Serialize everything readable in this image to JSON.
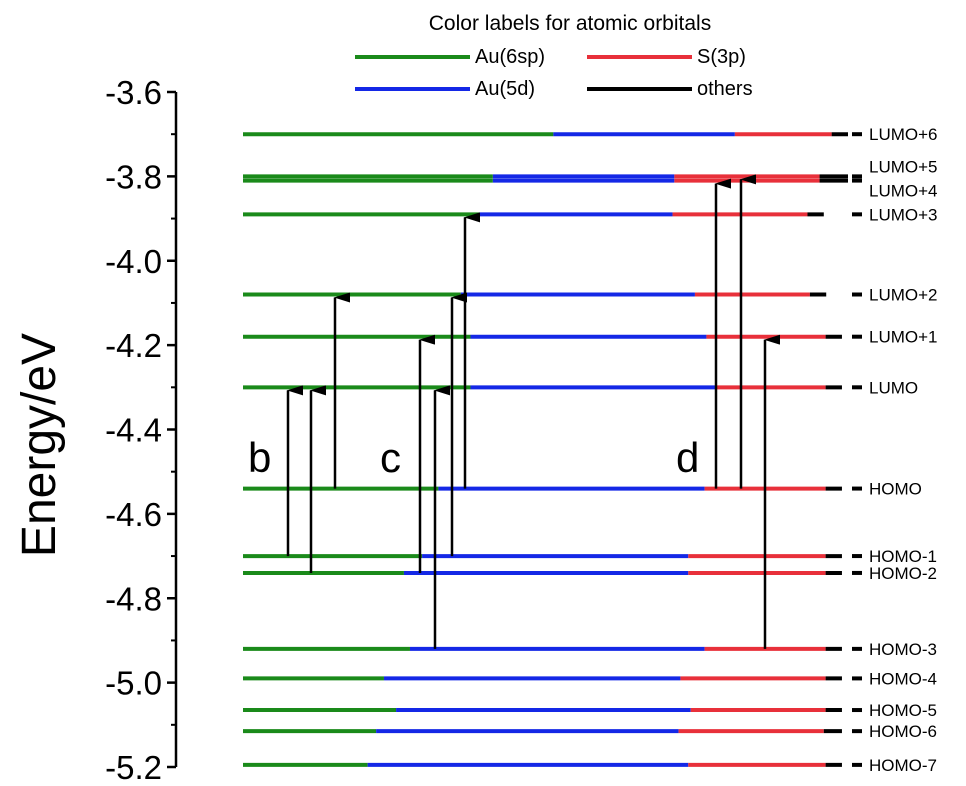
{
  "chart_data": {
    "type": "energy-level-diagram",
    "title": "",
    "xlabel": "",
    "ylabel": "Energy/eV",
    "ylim": [
      -5.2,
      -3.6
    ],
    "yticks": [
      {
        "value": -3.6,
        "label": "-3.6"
      },
      {
        "value": -3.8,
        "label": "-3.8"
      },
      {
        "value": -4.0,
        "label": "-4.0"
      },
      {
        "value": -4.2,
        "label": "-4.2"
      },
      {
        "value": -4.4,
        "label": "-4.4"
      },
      {
        "value": -4.6,
        "label": "-4.6"
      },
      {
        "value": -4.8,
        "label": "-4.8"
      },
      {
        "value": -5.0,
        "label": "-5.0"
      },
      {
        "value": -5.2,
        "label": "-5.2"
      }
    ],
    "legend": {
      "title": "Color labels for atomic orbitals",
      "placement": "top",
      "entries": [
        {
          "label": "Au(6sp)",
          "color": "#1a8a1a"
        },
        {
          "label": "S(3p)",
          "color": "#e8303a"
        },
        {
          "label": "Au(5d)",
          "color": "#1428e6"
        },
        {
          "label": "others",
          "color": "#000000"
        }
      ]
    },
    "colors": {
      "Au(6sp)": "#1a8a1a",
      "Au(5d)": "#1428e6",
      "S(3p)": "#e8303a",
      "others": "#000000"
    },
    "levels": [
      {
        "name": "LUMO+6",
        "energy": -3.7,
        "composition": {
          "Au(6sp)": 0.513,
          "Au(5d)": 0.3,
          "S(3p)": 0.16,
          "others": 0.027
        }
      },
      {
        "name": "LUMO+5",
        "energy": -3.8,
        "composition": {
          "Au(6sp)": 0.413,
          "Au(5d)": 0.3,
          "S(3p)": 0.24,
          "others": 0.047
        }
      },
      {
        "name": "LUMO+4",
        "energy": -3.81,
        "composition": {
          "Au(6sp)": 0.413,
          "Au(5d)": 0.3,
          "S(3p)": 0.24,
          "others": 0.047
        }
      },
      {
        "name": "LUMO+3",
        "energy": -3.89,
        "composition": {
          "Au(6sp)": 0.39,
          "Au(5d)": 0.32,
          "S(3p)": 0.223,
          "others": 0.027
        }
      },
      {
        "name": "LUMO+2",
        "energy": -4.08,
        "composition": {
          "Au(6sp)": 0.36,
          "Au(5d)": 0.387,
          "S(3p)": 0.19,
          "others": 0.027
        }
      },
      {
        "name": "LUMO+1",
        "energy": -4.18,
        "composition": {
          "Au(6sp)": 0.376,
          "Au(5d)": 0.39,
          "S(3p)": 0.197,
          "others": 0.027
        }
      },
      {
        "name": "LUMO",
        "energy": -4.3,
        "composition": {
          "Au(6sp)": 0.376,
          "Au(5d)": 0.407,
          "S(3p)": 0.18,
          "others": 0.027
        }
      },
      {
        "name": "HOMO",
        "energy": -4.54,
        "composition": {
          "Au(6sp)": 0.323,
          "Au(5d)": 0.44,
          "S(3p)": 0.2,
          "others": 0.027
        }
      },
      {
        "name": "HOMO-1",
        "energy": -4.7,
        "composition": {
          "Au(6sp)": 0.296,
          "Au(5d)": 0.44,
          "S(3p)": 0.227,
          "others": 0.027
        }
      },
      {
        "name": "HOMO-2",
        "energy": -4.74,
        "composition": {
          "Au(6sp)": 0.266,
          "Au(5d)": 0.47,
          "S(3p)": 0.227,
          "others": 0.027
        }
      },
      {
        "name": "HOMO-3",
        "energy": -4.92,
        "composition": {
          "Au(6sp)": 0.276,
          "Au(5d)": 0.487,
          "S(3p)": 0.2,
          "others": 0.027
        }
      },
      {
        "name": "HOMO-4",
        "energy": -4.99,
        "composition": {
          "Au(6sp)": 0.233,
          "Au(5d)": 0.49,
          "S(3p)": 0.24,
          "others": 0.027
        }
      },
      {
        "name": "HOMO-5",
        "energy": -5.065,
        "composition": {
          "Au(6sp)": 0.253,
          "Au(5d)": 0.487,
          "S(3p)": 0.223,
          "others": 0.027
        }
      },
      {
        "name": "HOMO-6",
        "energy": -5.115,
        "composition": {
          "Au(6sp)": 0.22,
          "Au(5d)": 0.5,
          "S(3p)": 0.24,
          "others": 0.03
        }
      },
      {
        "name": "HOMO-7",
        "energy": -5.195,
        "composition": {
          "Au(6sp)": 0.206,
          "Au(5d)": 0.53,
          "S(3p)": 0.227,
          "others": 0.027
        }
      }
    ],
    "transitions": [
      {
        "group": "b",
        "from": "HOMO-1",
        "to": "LUMO"
      },
      {
        "group": "b",
        "from": "HOMO-2",
        "to": "LUMO"
      },
      {
        "group": "b",
        "from": "HOMO",
        "to": "LUMO+2"
      },
      {
        "group": "c",
        "from": "HOMO-2",
        "to": "LUMO+1"
      },
      {
        "group": "c",
        "from": "HOMO-3",
        "to": "LUMO"
      },
      {
        "group": "c",
        "from": "HOMO-1",
        "to": "LUMO+2"
      },
      {
        "group": "c",
        "from": "HOMO",
        "to": "LUMO+3"
      },
      {
        "group": "d",
        "from": "HOMO",
        "to": "LUMO+4"
      },
      {
        "group": "d",
        "from": "HOMO",
        "to": "LUMO+5"
      },
      {
        "group": "d",
        "from": "HOMO-3",
        "to": "LUMO+1"
      }
    ],
    "transition_groups": [
      "b",
      "c",
      "d"
    ]
  }
}
